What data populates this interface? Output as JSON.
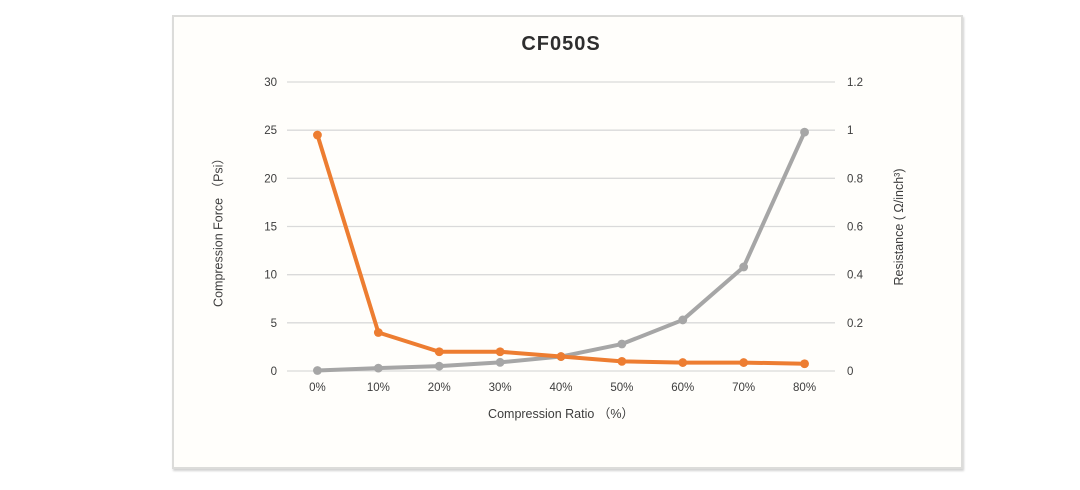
{
  "chart": {
    "title": "CF050S",
    "x_axis_title": "Compression Ratio （%）",
    "y_left_axis_title": "Compression Force （Psi）",
    "y_right_axis_title": "Resistance ( Ω/inch³)"
  },
  "chart_data": {
    "type": "line",
    "title": "CF050S",
    "xlabel": "Compression Ratio （%）",
    "categories": [
      "0%",
      "10%",
      "20%",
      "30%",
      "40%",
      "50%",
      "60%",
      "70%",
      "80%"
    ],
    "series": [
      {
        "id": "compression-force",
        "name": "Compression Force",
        "axis": "left",
        "color": "#a6a6a6",
        "values": [
          0.05,
          0.3,
          0.5,
          0.9,
          1.5,
          2.8,
          5.3,
          10.8,
          24.8
        ]
      },
      {
        "id": "resistance",
        "name": "Resistance",
        "axis": "right",
        "color": "#ed7d31",
        "values": [
          0.98,
          0.16,
          0.08,
          0.08,
          0.06,
          0.04,
          0.035,
          0.035,
          0.03
        ]
      }
    ],
    "axes": {
      "left": {
        "label": "Compression Force （Psi）",
        "min": 0,
        "max": 30,
        "tick_labels_top_to_bottom": [
          "30",
          "25",
          "20",
          "15",
          "10",
          "5",
          "0"
        ]
      },
      "right": {
        "label": "Resistance ( Ω/inch³)",
        "min": 0,
        "max": 1.2,
        "tick_labels_top_to_bottom": [
          "1.2",
          "1",
          "0.8",
          "0.6",
          "0.4",
          "0.2",
          "0"
        ]
      }
    },
    "layout_hints": {
      "grid": "horizontal-only",
      "legend": "none",
      "gridline_color": "#dadada",
      "marker": "circle",
      "text_color": "#3d3d3d"
    }
  }
}
